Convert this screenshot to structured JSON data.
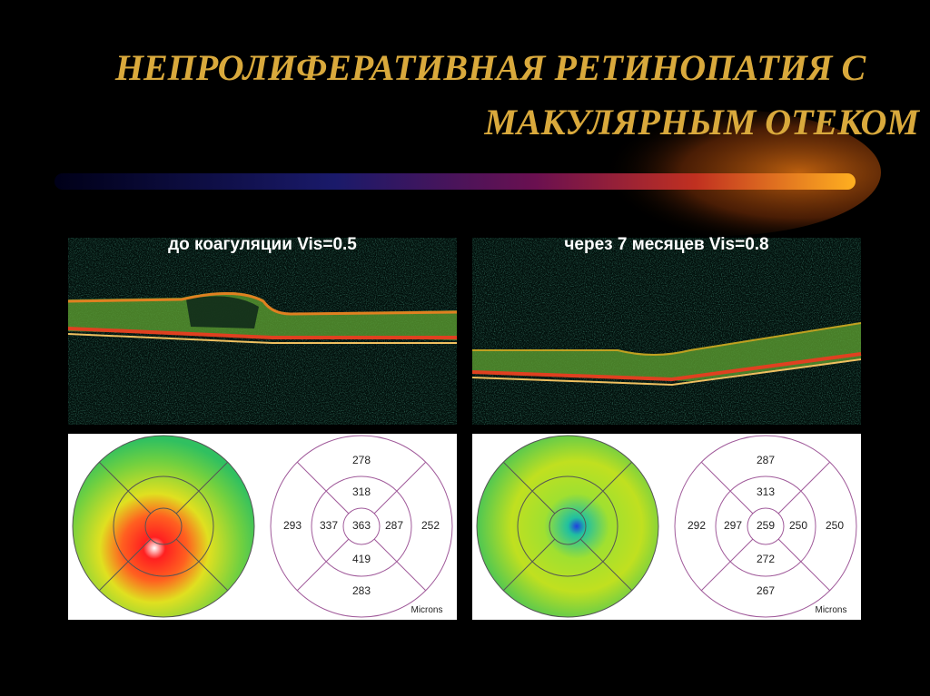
{
  "title": [
    "НЕПРОЛИФЕРАТИВНАЯ  РЕТИНОПАТИЯ С",
    "МАКУЛЯРНЫМ ОТЕКОМ"
  ],
  "panels": [
    {
      "caption": "до коагуляции Vis=0.5",
      "thickness_map": {
        "unit": "Microns",
        "outer_top": 278,
        "inner_top": 318,
        "outer_left": 293,
        "inner_left": 337,
        "center": 363,
        "inner_right": 287,
        "outer_right": 252,
        "inner_bottom": 419,
        "outer_bottom": 283
      }
    },
    {
      "caption": "через 7 месяцев Vis=0.8",
      "thickness_map": {
        "unit": "Microns",
        "outer_top": 287,
        "inner_top": 313,
        "outer_left": 292,
        "inner_left": 297,
        "center": 259,
        "inner_right": 250,
        "outer_right": 250,
        "inner_bottom": 272,
        "outer_bottom": 267
      }
    }
  ]
}
